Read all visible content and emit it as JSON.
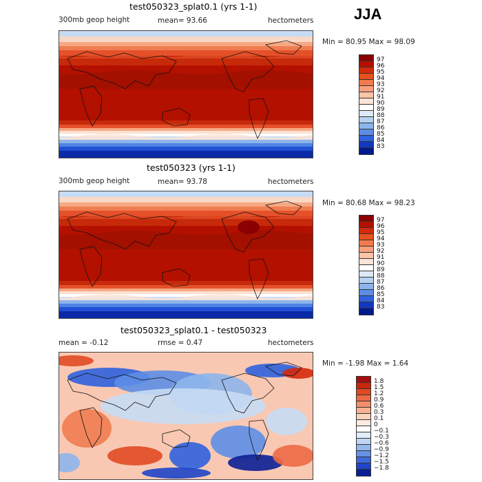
{
  "season": "JJA",
  "panels": [
    {
      "title": "test050323_splat0.1 (yrs 1-1)",
      "variable": "300mb geop height",
      "mean": "mean=   93.66",
      "units": "hectometers",
      "minmax": "Min =  80.95 Max =  98.09",
      "colorbar_labels": [
        "97",
        "96",
        "95",
        "94",
        "93",
        "92",
        "91",
        "90",
        "89",
        "88",
        "87",
        "86",
        "85",
        "84",
        "83"
      ],
      "colorbar_colors": [
        "#8b0000",
        "#b31000",
        "#d42a0a",
        "#e8511e",
        "#f27a4e",
        "#f9a07d",
        "#fcc4a8",
        "#fde4d6",
        "#ffffff",
        "#dceaf8",
        "#b7d1f0",
        "#8db5ec",
        "#5d8ee6",
        "#2f62dd",
        "#1238c2",
        "#001a8c"
      ]
    },
    {
      "title": "test050323 (yrs 1-1)",
      "variable": "300mb geop height",
      "mean": "mean=   93.78",
      "units": "hectometers",
      "minmax": "Min =  80.68 Max =  98.23",
      "colorbar_labels": [
        "97",
        "96",
        "95",
        "94",
        "93",
        "92",
        "91",
        "90",
        "89",
        "88",
        "87",
        "86",
        "85",
        "84",
        "83"
      ],
      "colorbar_colors": [
        "#8b0000",
        "#b31000",
        "#d42a0a",
        "#e8511e",
        "#f27a4e",
        "#f9a07d",
        "#fcc4a8",
        "#fde4d6",
        "#ffffff",
        "#dceaf8",
        "#b7d1f0",
        "#8db5ec",
        "#5d8ee6",
        "#2f62dd",
        "#1238c2",
        "#001a8c"
      ]
    },
    {
      "title": "test050323_splat0.1 - test050323",
      "mean": "mean =   -0.12",
      "rmse": "rmse =    0.47",
      "units": "hectometers",
      "minmax": "Min =  -1.98 Max =    1.64",
      "colorbar_labels": [
        "1.8",
        "1.5",
        "1.2",
        "0.9",
        "0.6",
        "0.3",
        "0.1",
        "0",
        "-0.1",
        "-0.3",
        "-0.6",
        "-0.9",
        "-1.2",
        "-1.5",
        "-1.8"
      ],
      "colorbar_colors": [
        "#a50f0f",
        "#c8280f",
        "#e04a23",
        "#ec6a45",
        "#f48e6a",
        "#f9b293",
        "#fcd3bd",
        "#fdebe0",
        "#ffffff",
        "#e0edfa",
        "#bfd6f3",
        "#93b8ec",
        "#6691e4",
        "#3c69dc",
        "#1e44c8",
        "#0a1f96"
      ]
    }
  ]
}
